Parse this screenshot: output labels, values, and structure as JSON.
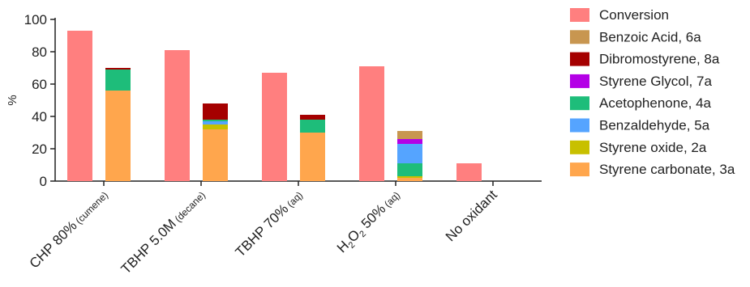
{
  "chart_data": {
    "type": "bar",
    "ylabel": "%",
    "ylim": [
      0,
      100
    ],
    "yticks": [
      0,
      20,
      40,
      60,
      80,
      100
    ],
    "categories": [
      {
        "main": "CHP 80%",
        "sub": "(cumene)"
      },
      {
        "main": "TBHP 5.0M",
        "sub": "(decane)"
      },
      {
        "main": "TBHP 70%",
        "sub": "(aq)"
      },
      {
        "main": "H2O2 50%",
        "sub": "(aq)"
      },
      {
        "main": "No oxidant",
        "sub": ""
      }
    ],
    "conversion": {
      "name": "Conversion",
      "color": "#ff7f7f",
      "values": [
        93,
        81,
        67,
        71,
        11
      ]
    },
    "stacked_series": [
      {
        "name": "Styrene carbonate, 3a",
        "color": "#ffa64d",
        "values": [
          56,
          32,
          30,
          2,
          0
        ]
      },
      {
        "name": "Styrene oxide, 2a",
        "color": "#c8c000",
        "values": [
          0,
          3,
          0,
          1,
          0
        ]
      },
      {
        "name": "Benzaldehyde, 5a",
        "color": "#55a4ff",
        "values": [
          0,
          2,
          0,
          0,
          0
        ]
      },
      {
        "name": "Acetophenone, 4a",
        "color": "#1ebd7a",
        "values": [
          13,
          1,
          8,
          8,
          0
        ]
      },
      {
        "name": "Benzaldehyde, 5a",
        "color": "#55a4ff",
        "values": [
          0,
          0,
          0,
          12,
          0
        ]
      },
      {
        "name": "Styrene Glycol, 7a",
        "color": "#b400e6",
        "values": [
          0,
          0,
          0,
          3,
          0
        ]
      },
      {
        "name": "Dibromostyrene, 8a",
        "color": "#a50000",
        "values": [
          1,
          10,
          3,
          0,
          0
        ]
      },
      {
        "name": "Benzoic Acid, 6a",
        "color": "#c89650",
        "values": [
          0,
          0,
          0,
          5,
          0
        ]
      }
    ],
    "legend": [
      {
        "name": "Conversion",
        "color": "#ff7f7f"
      },
      {
        "name": "Benzoic Acid, 6a",
        "color": "#c89650"
      },
      {
        "name": "Dibromostyrene, 8a",
        "color": "#a50000"
      },
      {
        "name": "Styrene Glycol, 7a",
        "color": "#b400e6"
      },
      {
        "name": "Acetophenone, 4a",
        "color": "#1ebd7a"
      },
      {
        "name": "Benzaldehyde, 5a",
        "color": "#55a4ff"
      },
      {
        "name": "Styrene oxide, 2a",
        "color": "#c8c000"
      },
      {
        "name": "Styrene carbonate, 3a",
        "color": "#ffa64d"
      }
    ]
  }
}
